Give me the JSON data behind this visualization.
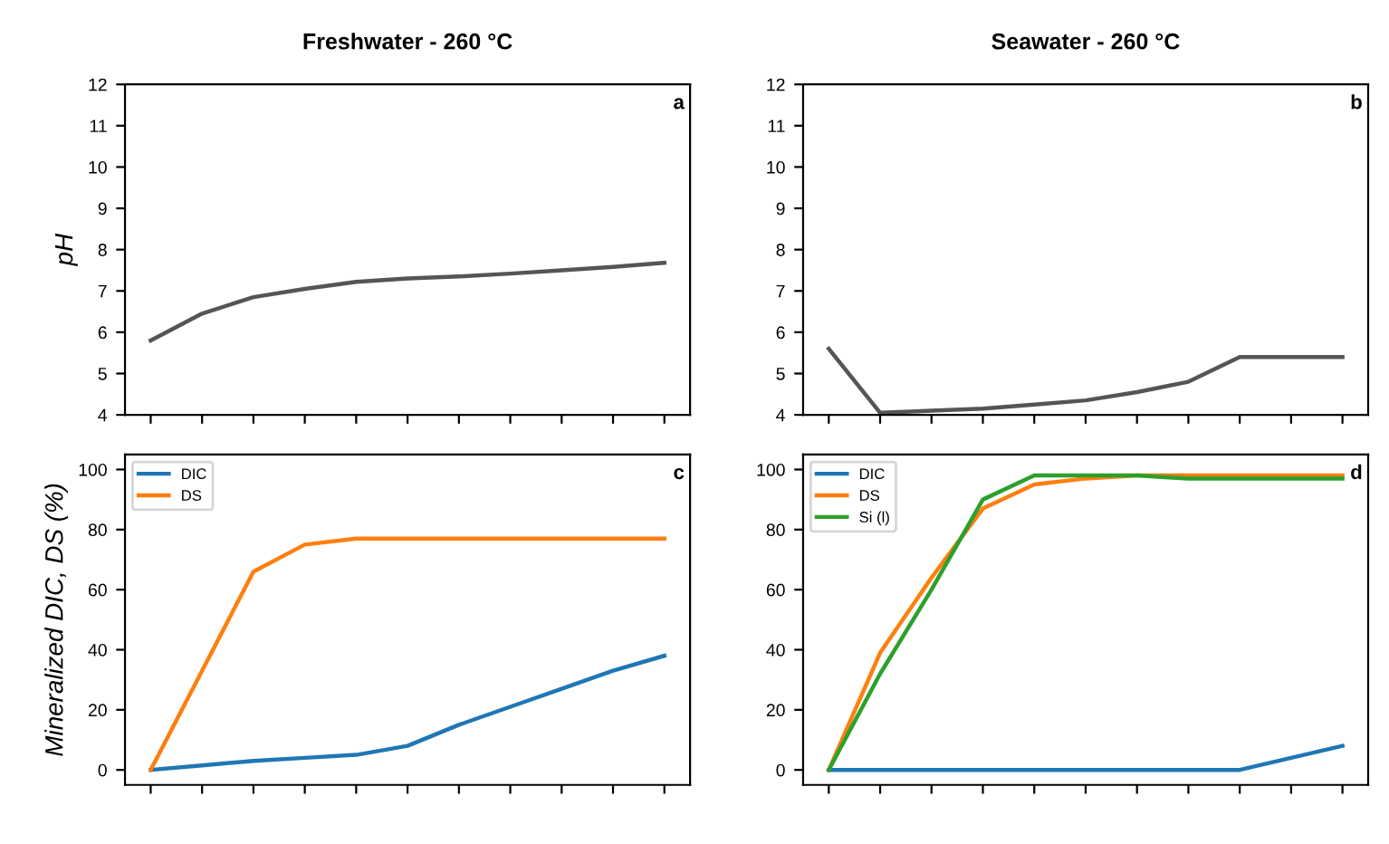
{
  "chart_data": [
    {
      "type": "line",
      "title": "Freshwater - 260 °C",
      "ylabel": "pH",
      "categories": [
        null,
        null,
        null,
        null,
        null,
        null,
        null,
        null,
        null,
        null,
        null
      ],
      "series": [
        {
          "color": "#555555",
          "values": [
            5.8,
            6.45,
            6.85,
            7.05,
            7.22,
            7.3,
            7.35,
            7.42,
            7.5,
            7.58,
            7.68
          ]
        }
      ],
      "ylim": [
        4,
        12
      ],
      "yticks": [
        4,
        5,
        6,
        7,
        8,
        9,
        10,
        11,
        12
      ],
      "annotations": [
        "a"
      ],
      "grid": false,
      "legend": false
    },
    {
      "type": "line",
      "title": "Seawater - 260 °C",
      "categories": [
        null,
        null,
        null,
        null,
        null,
        null,
        null,
        null,
        null,
        null,
        null
      ],
      "series": [
        {
          "color": "#555555",
          "values": [
            5.6,
            4.05,
            4.1,
            4.15,
            4.25,
            4.35,
            4.55,
            4.8,
            5.4,
            5.4,
            5.4
          ]
        }
      ],
      "ylim": [
        4,
        12
      ],
      "yticks": [
        4,
        5,
        6,
        7,
        8,
        9,
        10,
        11,
        12
      ],
      "annotations": [
        "b"
      ],
      "grid": false,
      "legend": false
    },
    {
      "type": "line",
      "ylabel": "Mineralized DIC, DS (%)",
      "categories": [
        null,
        null,
        null,
        null,
        null,
        null,
        null,
        null,
        null,
        null,
        null
      ],
      "series": [
        {
          "name": "DIC",
          "color": "#1f77b4",
          "values": [
            0,
            1.5,
            3,
            4,
            5,
            8,
            15,
            21,
            27,
            33,
            38
          ]
        },
        {
          "name": "DS",
          "color": "#ff7f0e",
          "values": [
            0,
            33,
            66,
            75,
            77,
            77,
            77,
            77,
            77,
            77,
            77
          ]
        }
      ],
      "ylim": [
        -5,
        105
      ],
      "yticks": [
        0,
        20,
        40,
        60,
        80,
        100
      ],
      "annotations": [
        "c"
      ],
      "grid": false,
      "legend": "top left"
    },
    {
      "type": "line",
      "categories": [
        null,
        null,
        null,
        null,
        null,
        null,
        null,
        null,
        null,
        null,
        null
      ],
      "series": [
        {
          "name": "DIC",
          "color": "#1f77b4",
          "values": [
            0,
            0,
            0,
            0,
            0,
            0,
            0,
            0,
            0,
            4,
            8
          ]
        },
        {
          "name": "DS",
          "color": "#ff7f0e",
          "values": [
            0,
            39,
            64,
            87,
            95,
            97,
            98,
            98,
            98,
            98,
            98
          ]
        },
        {
          "name": "Si (l)",
          "color": "#2ca02c",
          "values": [
            0,
            32,
            60,
            90,
            98,
            98,
            98,
            97,
            97,
            97,
            97
          ]
        }
      ],
      "ylim": [
        -5,
        105
      ],
      "yticks": [
        0,
        20,
        40,
        60,
        80,
        100
      ],
      "annotations": [
        "d"
      ],
      "grid": false,
      "legend": "top left"
    }
  ]
}
